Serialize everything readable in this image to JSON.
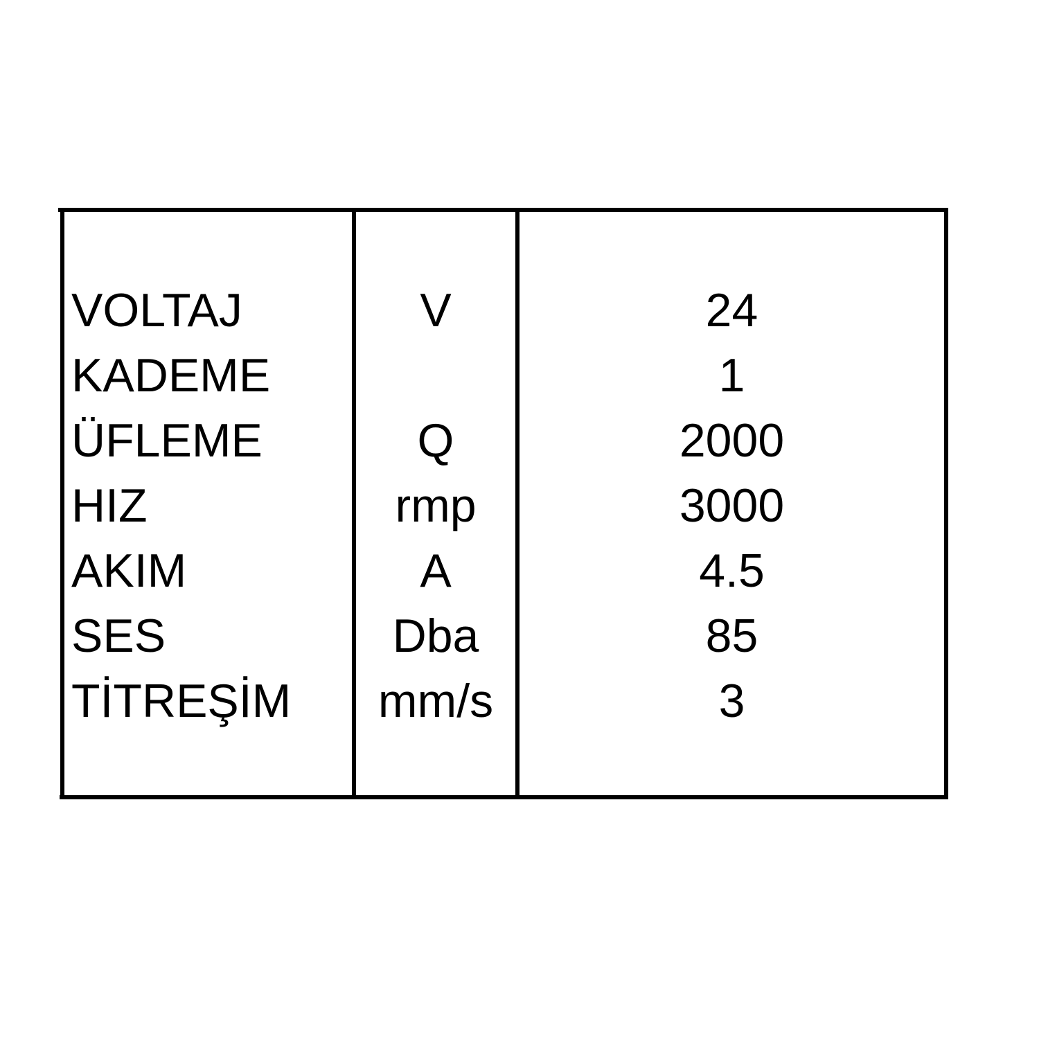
{
  "table": {
    "rows": [
      {
        "parameter": "VOLTAJ",
        "unit": "V",
        "value": "24"
      },
      {
        "parameter": "KADEME",
        "unit": "",
        "value": "1"
      },
      {
        "parameter": "ÜFLEME",
        "unit": "Q",
        "value": "2000"
      },
      {
        "parameter": "HIZ",
        "unit": "rmp",
        "value": "3000"
      },
      {
        "parameter": "AKIM",
        "unit": "A",
        "value": "4.5"
      },
      {
        "parameter": "SES",
        "unit": "Dba",
        "value": "85"
      },
      {
        "parameter": "TİTREŞİM",
        "unit": "mm/s",
        "value": "3"
      }
    ]
  }
}
